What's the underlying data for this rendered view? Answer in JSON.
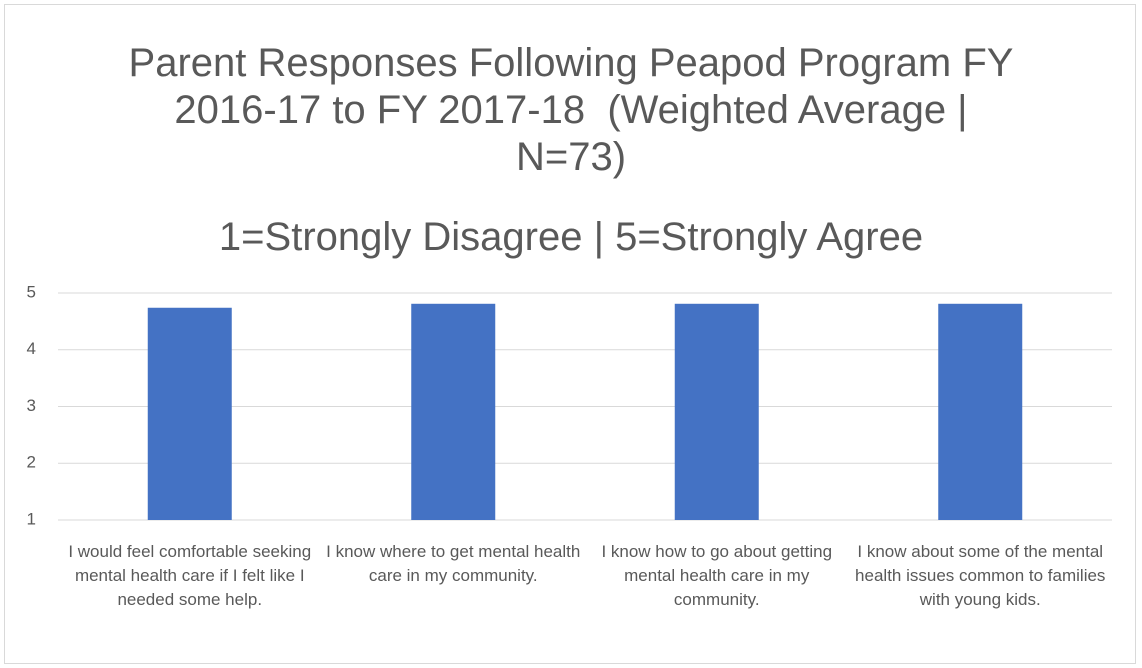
{
  "chart_data": {
    "type": "bar",
    "title": "Parent Responses Following Peapod Program FY 2016-17 to FY 2017-18  (Weighted Average | N=73)",
    "subtitle": "1=Strongly Disagree | 5=Strongly Agree",
    "categories": [
      "I would feel comfortable seeking mental health care if I felt like I needed some help.",
      "I know where to get mental health care in my community.",
      "I know how to go about getting mental health care in my community.",
      "I know about some of the mental health issues common to families with young kids."
    ],
    "values": [
      4.74,
      4.81,
      4.81,
      4.81
    ],
    "color": "#4472c4",
    "ylim": [
      1,
      5
    ],
    "yticks": [
      1,
      2,
      3,
      4,
      5
    ],
    "grid": true
  }
}
